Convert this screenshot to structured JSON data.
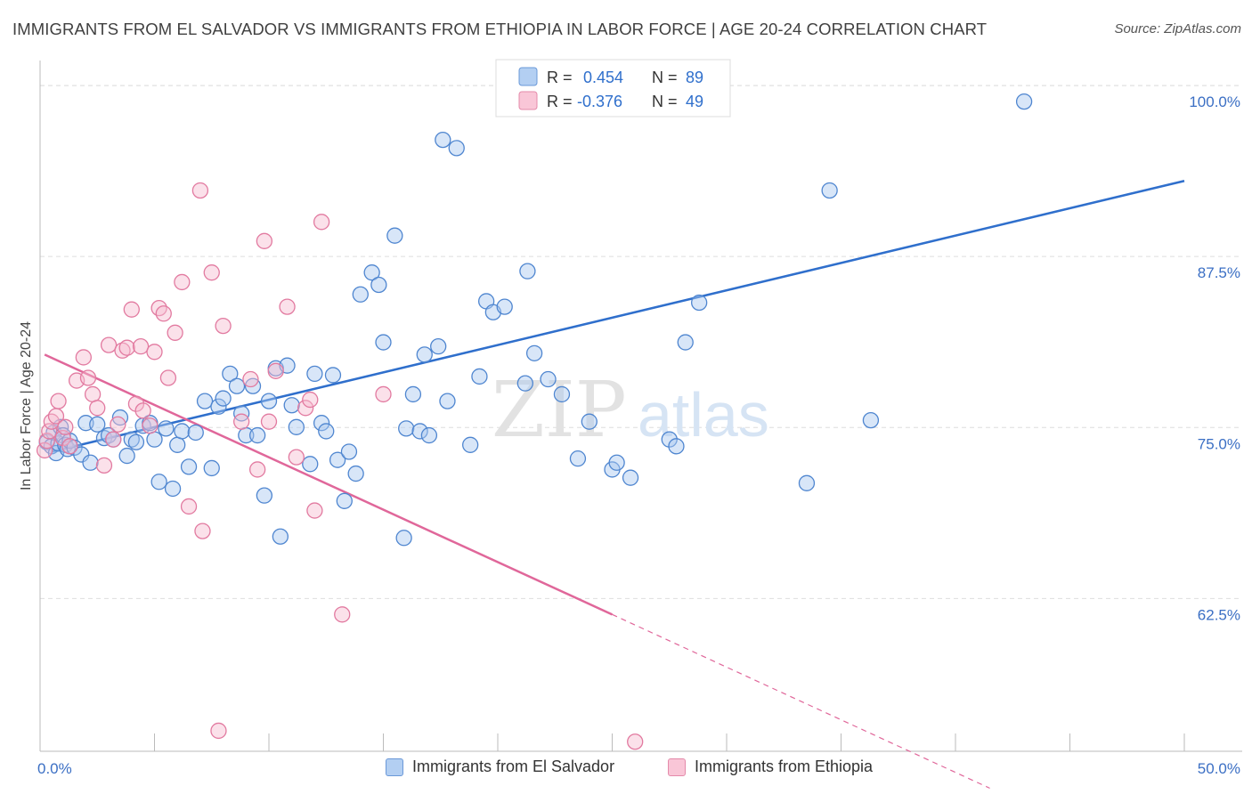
{
  "title": "IMMIGRANTS FROM EL SALVADOR VS IMMIGRANTS FROM ETHIOPIA IN LABOR FORCE | AGE 20-24 CORRELATION CHART",
  "source": "Source: ZipAtlas.com",
  "watermark": {
    "zip": "ZIP",
    "atlas": "atlas"
  },
  "colors": {
    "blue_fill": "#a9c8f0",
    "blue_stroke": "#4f86d0",
    "blue_line": "#2f6fcc",
    "pink_fill": "#f7bcd0",
    "pink_stroke": "#e27aa0",
    "pink_line": "#e0679a",
    "tick_label": "#3b6fc4",
    "grid": "#dedede",
    "axis": "#bbbbbb"
  },
  "legend": {
    "r_label": "R =",
    "n_label": "N =",
    "rows": [
      {
        "series": "blue",
        "r": "0.454",
        "n": "89"
      },
      {
        "series": "pink",
        "r": "-0.376",
        "n": "49"
      }
    ]
  },
  "chart_data": {
    "type": "scatter",
    "xlabel": "",
    "ylabel": "In Labor Force | Age 20-24",
    "xlim": [
      0,
      50
    ],
    "ylim": [
      52.5,
      103.0
    ],
    "x_tick_labels": [
      {
        "value": 0,
        "label": "0.0%"
      },
      {
        "value": 50,
        "label": "50.0%"
      }
    ],
    "x_minor_ticks": [
      0,
      5,
      10,
      15,
      20,
      25,
      30,
      35,
      40,
      45,
      50
    ],
    "y_ticks": [
      {
        "value": 100.0,
        "label": "100.0%"
      },
      {
        "value": 87.5,
        "label": "87.5%"
      },
      {
        "value": 75.0,
        "label": "75.0%"
      },
      {
        "value": 62.5,
        "label": "62.5%"
      }
    ],
    "grid": true,
    "legend_position": "top-center",
    "series": [
      {
        "name": "Immigrants from El Salvador",
        "color": "blue",
        "trend": {
          "x0": 0.5,
          "y0": 74.4,
          "x1": 50.0,
          "y1": 94.2
        },
        "points": [
          [
            0.3,
            75.1
          ],
          [
            0.5,
            74.8
          ],
          [
            0.6,
            75.8
          ],
          [
            0.7,
            74.3
          ],
          [
            0.8,
            75.0
          ],
          [
            0.9,
            76.2
          ],
          [
            1.0,
            75.6
          ],
          [
            1.1,
            74.9
          ],
          [
            1.2,
            74.6
          ],
          [
            1.3,
            75.2
          ],
          [
            1.5,
            74.7
          ],
          [
            1.8,
            74.2
          ],
          [
            2.0,
            76.5
          ],
          [
            2.2,
            73.6
          ],
          [
            2.5,
            76.4
          ],
          [
            2.8,
            75.4
          ],
          [
            3.0,
            75.6
          ],
          [
            3.2,
            75.3
          ],
          [
            3.5,
            76.9
          ],
          [
            3.8,
            74.1
          ],
          [
            4.0,
            75.3
          ],
          [
            4.2,
            75.1
          ],
          [
            4.5,
            76.3
          ],
          [
            4.8,
            76.5
          ],
          [
            5.0,
            75.3
          ],
          [
            5.2,
            72.2
          ],
          [
            5.5,
            76.1
          ],
          [
            5.8,
            71.7
          ],
          [
            6.0,
            74.9
          ],
          [
            6.2,
            75.9
          ],
          [
            6.5,
            73.3
          ],
          [
            6.8,
            75.8
          ],
          [
            7.2,
            78.1
          ],
          [
            7.5,
            73.2
          ],
          [
            7.8,
            77.7
          ],
          [
            8.0,
            78.3
          ],
          [
            8.3,
            80.1
          ],
          [
            8.6,
            79.2
          ],
          [
            8.8,
            77.2
          ],
          [
            9.0,
            75.6
          ],
          [
            9.3,
            79.2
          ],
          [
            9.5,
            75.6
          ],
          [
            9.8,
            71.2
          ],
          [
            10.0,
            78.1
          ],
          [
            10.3,
            80.5
          ],
          [
            10.5,
            68.2
          ],
          [
            10.8,
            80.7
          ],
          [
            11.0,
            77.8
          ],
          [
            11.2,
            76.2
          ],
          [
            11.8,
            73.5
          ],
          [
            12.0,
            80.1
          ],
          [
            12.3,
            76.5
          ],
          [
            12.5,
            75.9
          ],
          [
            12.8,
            80.0
          ],
          [
            13.0,
            73.8
          ],
          [
            13.3,
            70.8
          ],
          [
            13.5,
            74.4
          ],
          [
            13.8,
            72.8
          ],
          [
            14.0,
            85.9
          ],
          [
            14.5,
            87.5
          ],
          [
            14.8,
            86.6
          ],
          [
            15.0,
            82.4
          ],
          [
            15.5,
            90.2
          ],
          [
            15.9,
            68.1
          ],
          [
            16.0,
            76.1
          ],
          [
            16.3,
            78.6
          ],
          [
            16.6,
            75.9
          ],
          [
            16.8,
            81.5
          ],
          [
            17.0,
            75.6
          ],
          [
            17.4,
            82.1
          ],
          [
            17.6,
            97.2
          ],
          [
            17.8,
            78.1
          ],
          [
            18.2,
            96.6
          ],
          [
            18.8,
            74.9
          ],
          [
            19.2,
            79.9
          ],
          [
            19.5,
            85.4
          ],
          [
            19.8,
            84.6
          ],
          [
            20.3,
            85.0
          ],
          [
            20.9,
            100.0
          ],
          [
            21.2,
            79.4
          ],
          [
            21.3,
            87.6
          ],
          [
            21.6,
            81.6
          ],
          [
            22.2,
            79.7
          ],
          [
            22.8,
            78.6
          ],
          [
            23.5,
            73.9
          ],
          [
            24.0,
            76.6
          ],
          [
            25.0,
            73.1
          ],
          [
            25.2,
            73.6
          ],
          [
            25.8,
            72.5
          ],
          [
            27.5,
            75.3
          ],
          [
            27.8,
            74.8
          ],
          [
            28.2,
            82.4
          ],
          [
            28.8,
            85.3
          ],
          [
            33.5,
            72.1
          ],
          [
            34.5,
            93.5
          ],
          [
            36.3,
            76.7
          ],
          [
            43.0,
            100.0
          ]
        ]
      },
      {
        "name": "Immigrants from Ethiopia",
        "color": "pink",
        "trend": {
          "x0": 0.2,
          "y0": 81.5,
          "x1": 25.0,
          "y1": 62.5
        },
        "trend_dashed": {
          "x0": 25.0,
          "y0": 62.5,
          "x1": 41.5,
          "y1": 49.8
        },
        "points": [
          [
            0.2,
            74.5
          ],
          [
            0.3,
            75.2
          ],
          [
            0.4,
            75.9
          ],
          [
            0.5,
            76.6
          ],
          [
            0.7,
            77.0
          ],
          [
            0.8,
            78.1
          ],
          [
            1.0,
            75.4
          ],
          [
            1.1,
            76.2
          ],
          [
            1.3,
            74.8
          ],
          [
            1.6,
            79.6
          ],
          [
            1.9,
            81.3
          ],
          [
            2.1,
            79.8
          ],
          [
            2.3,
            78.6
          ],
          [
            2.5,
            77.6
          ],
          [
            2.8,
            73.4
          ],
          [
            3.0,
            82.2
          ],
          [
            3.2,
            75.3
          ],
          [
            3.4,
            76.4
          ],
          [
            3.6,
            81.8
          ],
          [
            3.8,
            82.0
          ],
          [
            4.0,
            84.8
          ],
          [
            4.2,
            77.9
          ],
          [
            4.4,
            82.1
          ],
          [
            4.5,
            77.4
          ],
          [
            4.8,
            76.3
          ],
          [
            5.0,
            81.7
          ],
          [
            5.2,
            84.9
          ],
          [
            5.4,
            84.5
          ],
          [
            5.6,
            79.8
          ],
          [
            5.9,
            83.1
          ],
          [
            6.2,
            86.8
          ],
          [
            6.5,
            70.4
          ],
          [
            7.0,
            93.5
          ],
          [
            7.5,
            87.5
          ],
          [
            8.0,
            83.6
          ],
          [
            8.8,
            76.6
          ],
          [
            9.2,
            79.7
          ],
          [
            9.5,
            73.1
          ],
          [
            9.8,
            89.8
          ],
          [
            10.0,
            76.6
          ],
          [
            10.3,
            80.3
          ],
          [
            10.8,
            85.0
          ],
          [
            11.2,
            74.0
          ],
          [
            11.6,
            77.6
          ],
          [
            11.8,
            78.2
          ],
          [
            12.0,
            70.1
          ],
          [
            12.3,
            91.2
          ],
          [
            13.2,
            62.5
          ],
          [
            15.0,
            78.6
          ],
          [
            7.1,
            68.6
          ],
          [
            26.0,
            53.2
          ],
          [
            7.8,
            54.0
          ]
        ]
      }
    ]
  }
}
